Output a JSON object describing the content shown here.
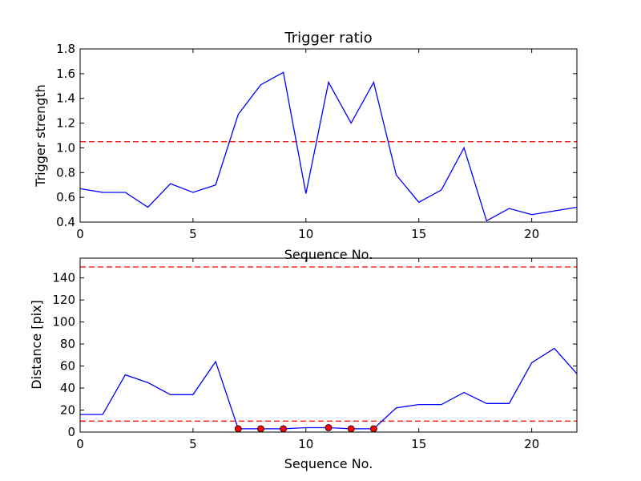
{
  "colors": {
    "series": "#0000ff",
    "threshold": "#ff0000",
    "marker": "#ff0000",
    "frame": "#000000",
    "background": "#ffffff"
  },
  "chart_data": [
    {
      "type": "line",
      "title": "Trigger ratio",
      "xlabel": "Sequence No.",
      "ylabel": "Trigger strength",
      "xlim": [
        0,
        22
      ],
      "ylim": [
        0.4,
        1.8
      ],
      "xticks": [
        0,
        5,
        10,
        15,
        20
      ],
      "yticks": [
        0.4,
        0.6,
        0.8,
        1.0,
        1.2,
        1.4,
        1.6,
        1.8
      ],
      "ytick_labels": [
        "0.4",
        "0.6",
        "0.8",
        "1.0",
        "1.2",
        "1.4",
        "1.6",
        "1.8"
      ],
      "grid": false,
      "series": [
        {
          "x": [
            0,
            1,
            2,
            3,
            4,
            5,
            6,
            7,
            8,
            9,
            10,
            11,
            12,
            13,
            14,
            15,
            16,
            17,
            18,
            19,
            20,
            21,
            22
          ],
          "values": [
            0.67,
            0.64,
            0.64,
            0.52,
            0.71,
            0.64,
            0.7,
            1.27,
            1.51,
            1.61,
            0.63,
            1.53,
            1.2,
            1.53,
            0.78,
            0.56,
            0.66,
            1.0,
            0.41,
            0.51,
            0.46,
            0.49,
            0.52
          ]
        }
      ],
      "hlines": [
        1.05
      ]
    },
    {
      "type": "line",
      "title": "",
      "xlabel": "Sequence No.",
      "ylabel": "Distance [pix]",
      "xlim": [
        0,
        22
      ],
      "ylim": [
        0,
        158
      ],
      "xticks": [
        0,
        5,
        10,
        15,
        20
      ],
      "yticks": [
        0,
        20,
        40,
        60,
        80,
        100,
        120,
        140
      ],
      "ytick_labels": [
        "0",
        "20",
        "40",
        "60",
        "80",
        "100",
        "120",
        "140"
      ],
      "grid": false,
      "series": [
        {
          "x": [
            0,
            1,
            2,
            3,
            4,
            5,
            6,
            7,
            8,
            9,
            10,
            11,
            12,
            13,
            14,
            15,
            16,
            17,
            18,
            19,
            20,
            21,
            22
          ],
          "values": [
            16,
            16,
            52,
            45,
            34,
            34,
            64,
            3,
            3,
            3,
            4,
            4,
            3,
            3,
            22,
            25,
            25,
            36,
            26,
            26,
            63,
            76,
            53
          ]
        }
      ],
      "markers": {
        "x": [
          7,
          8,
          9,
          11,
          12,
          13
        ],
        "y": [
          3,
          3,
          3,
          4,
          3,
          3
        ]
      },
      "hlines": [
        10,
        150
      ]
    }
  ]
}
